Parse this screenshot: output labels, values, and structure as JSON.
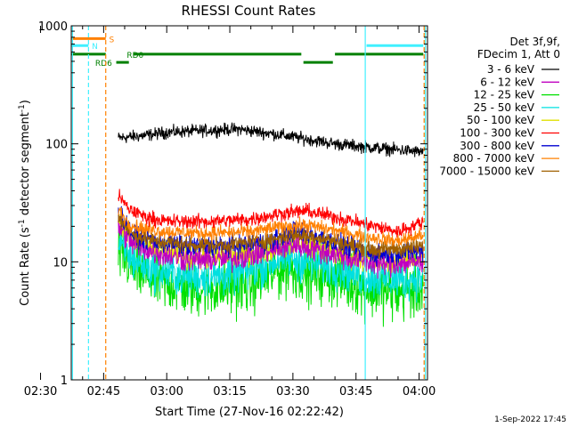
{
  "chart_data": {
    "type": "line",
    "title": "RHESSI Count Rates",
    "xlabel": "Start Time (27-Nov-16 02:22:42)",
    "ylabel_main": "Count Rate (s",
    "ylabel_sup1": "-1",
    "ylabel_mid": " detector segment",
    "ylabel_sup2": "-1",
    "ylabel_end": ")",
    "footer": "1-Sep-2022 17:45",
    "yscale": "log",
    "ylim": [
      1,
      1000
    ],
    "xlim_minutes": [
      -22.7,
      62
    ],
    "x_ticks": [
      {
        "m": -30,
        "label": "02:30"
      },
      {
        "m": -15,
        "label": "02:45"
      },
      {
        "m": 0,
        "label": "03:00"
      },
      {
        "m": 15,
        "label": "03:15"
      },
      {
        "m": 30,
        "label": "03:30"
      },
      {
        "m": 45,
        "label": "03:45"
      },
      {
        "m": 60,
        "label": "04:00"
      }
    ],
    "y_ticks": [
      {
        "v": 1,
        "label": "1"
      },
      {
        "v": 10,
        "label": "10"
      },
      {
        "v": 100,
        "label": "100"
      },
      {
        "v": 1000,
        "label": "1000"
      }
    ],
    "legend": {
      "header1": "Det 3f,9f,",
      "header2": "FDecim 1, Att 0",
      "position": "right"
    },
    "series": [
      {
        "name": "3 - 6 keV",
        "color": "#000000",
        "start": -11.5,
        "end": 61,
        "noise": 0.06,
        "x": [
          -11.5,
          -5,
          0,
          10,
          17,
          25,
          33,
          40,
          50,
          61
        ],
        "y": [
          112,
          118,
          125,
          130,
          133,
          122,
          110,
          100,
          92,
          85
        ]
      },
      {
        "name": "6 - 12 keV",
        "color": "#c000c0",
        "start": -11.5,
        "end": 61,
        "noise": 0.12,
        "x": [
          -11.5,
          -8,
          -3,
          5,
          15,
          25,
          30,
          35,
          40,
          45,
          50,
          61
        ],
        "y": [
          20,
          14,
          12,
          10.5,
          10.5,
          12.5,
          14,
          13,
          11.5,
          10.5,
          9.5,
          10
        ]
      },
      {
        "name": "12 - 25 keV",
        "color": "#00e000",
        "start": -11.5,
        "end": 61,
        "noise": 0.28,
        "x": [
          -11.5,
          -8,
          -3,
          5,
          12,
          20,
          28,
          33,
          40,
          47,
          55,
          61
        ],
        "y": [
          12,
          9,
          7,
          6,
          6,
          6.5,
          9,
          8,
          7.5,
          6,
          5.5,
          6
        ]
      },
      {
        "name": "25 - 50 keV",
        "color": "#00e0e0",
        "start": -11.5,
        "end": 61,
        "noise": 0.2,
        "x": [
          -11.5,
          -8,
          -3,
          5,
          12,
          20,
          28,
          33,
          40,
          47,
          55,
          61
        ],
        "y": [
          14,
          10.5,
          8.5,
          7.5,
          7.5,
          8.5,
          11,
          10,
          9,
          7.5,
          7,
          7.5
        ]
      },
      {
        "name": "50 - 100 keV",
        "color": "#e0e000",
        "start": -11.5,
        "end": 61,
        "noise": 0.12,
        "x": [
          -11.5,
          -8,
          -3,
          5,
          15,
          25,
          30,
          35,
          40,
          45,
          50,
          61
        ],
        "y": [
          22,
          15,
          13,
          11,
          11,
          13,
          15,
          14,
          12,
          11,
          10,
          11
        ]
      },
      {
        "name": "100 - 300 keV",
        "color": "#ff0000",
        "start": -11.5,
        "end": 61,
        "noise": 0.07,
        "x": [
          -11.5,
          -9,
          -5,
          0,
          10,
          20,
          28,
          33,
          40,
          47,
          55,
          61
        ],
        "y": [
          36,
          28,
          24,
          22,
          22,
          23,
          26,
          27,
          24,
          21,
          18,
          22
        ]
      },
      {
        "name": "300 - 800 keV",
        "color": "#0000d0",
        "start": -11.5,
        "end": 61,
        "noise": 0.1,
        "x": [
          -11.5,
          -8,
          -3,
          5,
          15,
          25,
          30,
          35,
          40,
          45,
          50,
          61
        ],
        "y": [
          26,
          17,
          15,
          13.5,
          13.5,
          15,
          18,
          17,
          14.5,
          12.5,
          11.5,
          12.5
        ]
      },
      {
        "name": "800 - 7000 keV",
        "color": "#ff8000",
        "start": -11.5,
        "end": 61,
        "noise": 0.07,
        "x": [
          -11.5,
          -9,
          -5,
          0,
          10,
          20,
          28,
          33,
          40,
          47,
          55,
          61
        ],
        "y": [
          28,
          21,
          19,
          18,
          17.5,
          18,
          20,
          20.5,
          18.5,
          16.5,
          15,
          17
        ]
      },
      {
        "name": "7000 - 15000 keV",
        "color": "#a06000",
        "start": -11.5,
        "end": 61,
        "noise": 0.08,
        "x": [
          -11.5,
          -8,
          -3,
          5,
          15,
          25,
          30,
          35,
          40,
          45,
          50,
          61
        ],
        "y": [
          24,
          17,
          15,
          14,
          14,
          15.5,
          17,
          16.5,
          15,
          13.5,
          12.5,
          13.5
        ]
      }
    ],
    "flags": [
      {
        "label": "S",
        "color": "#ff8000",
        "y": 780,
        "segments": [
          [
            -22.7,
            -14.5
          ]
        ],
        "label_m": -13.7
      },
      {
        "label": "N",
        "color": "#40f0ff",
        "y": 680,
        "segments": [
          [
            -22.7,
            -18.6
          ],
          [
            47.5,
            61
          ]
        ],
        "label_m": -17.8
      },
      {
        "label": "RD0",
        "color": "#008000",
        "y": 575,
        "segments": [
          [
            -22.7,
            -14.5
          ],
          [
            -8,
            32
          ],
          [
            40,
            61
          ]
        ],
        "label_m": -9.5
      },
      {
        "label": "RD6",
        "color": "#008000",
        "y": 490,
        "segments": [
          [
            -12,
            -9
          ],
          [
            32.5,
            39.5
          ]
        ],
        "label_m": -17
      }
    ],
    "vlines": [
      {
        "m": -22.4,
        "color": "#40f0ff",
        "style": "solid"
      },
      {
        "m": -18.6,
        "color": "#40f0ff",
        "style": "dashed"
      },
      {
        "m": -14.5,
        "color": "#ff8000",
        "style": "dashed"
      },
      {
        "m": 47.2,
        "color": "#40f0ff",
        "style": "solid"
      },
      {
        "m": 61.2,
        "color": "#ff8000",
        "style": "dashed"
      },
      {
        "m": 61.5,
        "color": "#40f0ff",
        "style": "solid"
      }
    ]
  }
}
